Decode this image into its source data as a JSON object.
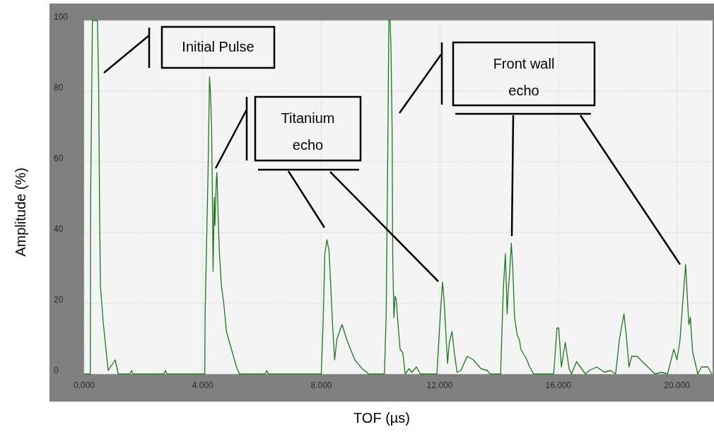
{
  "chart_data": {
    "type": "line",
    "xlabel": "TOF (µs)",
    "ylabel": "Amplitude (%)",
    "xlim": [
      0,
      21.2
    ],
    "ylim": [
      0,
      100
    ],
    "xticks": [
      {
        "value": 0,
        "label": "0.000"
      },
      {
        "value": 4,
        "label": "4.000"
      },
      {
        "value": 8,
        "label": "8.000"
      },
      {
        "value": 12,
        "label": "12.000"
      },
      {
        "value": 16,
        "label": "16.000"
      },
      {
        "value": 20,
        "label": "20.000"
      }
    ],
    "yticks": [
      0,
      20,
      40,
      60,
      80,
      100
    ],
    "grid": true,
    "line_style": "solid",
    "marker": "none",
    "annotations": [
      "Initial Pulse",
      "Titanium echo",
      "Front wall echo"
    ],
    "series": [
      {
        "color": "#1a7a1a",
        "x": [
          0,
          0.21,
          0.22,
          0.28,
          0.45,
          0.49,
          0.52,
          0.55,
          0.64,
          0.81,
          1.05,
          1.15,
          1.55,
          1.6,
          1.65,
          2.69,
          2.74,
          2.79,
          4.07,
          4.08,
          4.18,
          4.23,
          4.26,
          4.3,
          4.33,
          4.35,
          4.39,
          4.41,
          4.46,
          4.48,
          4.52,
          4.56,
          4.63,
          4.71,
          4.8,
          4.97,
          5.14,
          5.24,
          6.11,
          6.16,
          6.21,
          8.0,
          8.06,
          8.12,
          8.19,
          8.26,
          8.32,
          8.38,
          8.45,
          8.53,
          8.7,
          8.87,
          9.13,
          9.38,
          9.6,
          10.13,
          10.19,
          10.24,
          10.28,
          10.32,
          10.35,
          10.39,
          10.41,
          10.45,
          10.49,
          10.53,
          10.59,
          10.66,
          10.75,
          10.83,
          10.96,
          11.05,
          11.21,
          11.34,
          11.9,
          12.01,
          12.09,
          12.15,
          12.2,
          12.26,
          12.32,
          12.41,
          12.49,
          12.58,
          12.71,
          12.92,
          13.13,
          13.39,
          13.6,
          13.69,
          14.05,
          14.14,
          14.21,
          14.27,
          14.31,
          14.35,
          14.41,
          14.46,
          14.52,
          14.61,
          14.69,
          14.73,
          14.91,
          15.03,
          15.16,
          15.84,
          15.95,
          16.01,
          16.1,
          16.23,
          16.36,
          16.44,
          16.61,
          16.91,
          17.04,
          17.29,
          17.55,
          17.76,
          17.93,
          18.06,
          18.21,
          18.3,
          18.38,
          18.47,
          18.66,
          18.83,
          19.08,
          19.25,
          19.47,
          19.68,
          19.89,
          20.0,
          20.1,
          20.19,
          20.29,
          20.36,
          20.4,
          20.45,
          20.53,
          20.62,
          20.7,
          20.83,
          21.04,
          21.17
        ],
        "values": [
          0,
          0,
          50,
          100,
          100,
          82,
          48,
          25,
          15,
          1,
          4,
          0,
          0,
          1,
          0,
          0,
          1,
          0,
          0,
          16,
          57,
          84,
          80,
          70,
          48,
          29,
          50,
          42,
          55,
          57,
          45,
          35,
          25,
          20,
          12,
          7,
          2,
          0,
          0,
          1,
          0,
          0,
          14,
          34,
          38,
          35,
          25,
          14,
          4,
          10,
          14,
          9.5,
          4,
          1.5,
          0,
          0,
          17,
          60,
          100,
          100,
          93,
          69,
          33,
          16,
          22,
          21,
          14,
          7,
          6,
          0,
          1.5,
          0.5,
          2,
          0,
          0,
          16,
          26,
          20,
          12,
          3,
          9,
          12,
          6,
          0.5,
          1,
          5,
          4,
          1.5,
          1,
          0,
          0,
          24,
          34,
          17,
          24,
          28,
          37,
          30,
          16,
          11,
          9.5,
          7,
          4.5,
          2,
          0,
          0,
          13,
          13,
          2,
          9,
          1.5,
          0,
          3.5,
          0,
          1,
          2,
          0.5,
          1,
          0,
          10,
          17,
          10,
          2,
          5,
          5,
          3.5,
          1.5,
          0,
          0.5,
          0,
          7,
          4,
          9.5,
          20,
          31,
          20,
          14,
          16,
          6,
          3,
          0,
          2,
          2,
          0
        ]
      }
    ]
  }
}
